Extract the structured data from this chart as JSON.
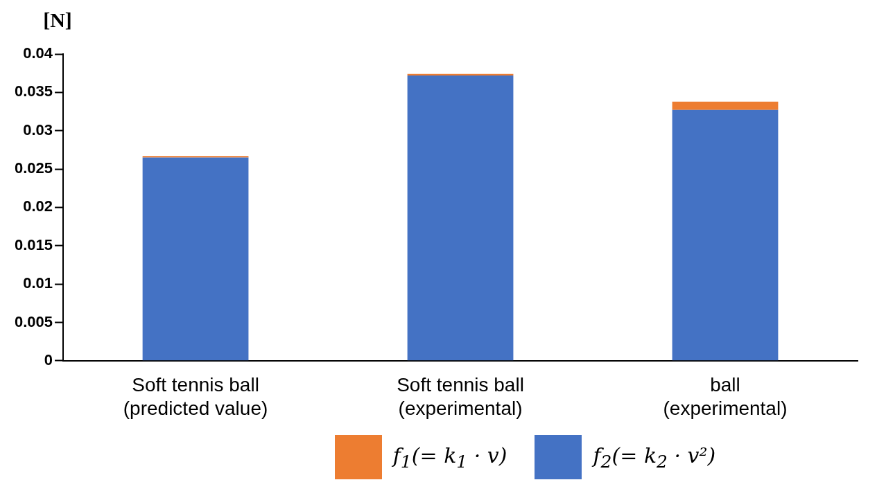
{
  "chart_data": {
    "type": "bar",
    "stacked": true,
    "ylabel": "[N]",
    "categories": [
      "Soft tennis ball\n(predicted value)",
      "Soft tennis ball\n(experimental)",
      "ball\n(experimental)"
    ],
    "series": [
      {
        "name": "f$_{2}$(= k$_{2}$ · v²)",
        "color": "#4472c4",
        "values": [
          0.0265,
          0.0372,
          0.0327
        ]
      },
      {
        "name": "f$_{1}$(= k$_{1}$ · v)",
        "color": "#ed7d31",
        "values": [
          0.0002,
          0.0002,
          0.0011
        ]
      }
    ],
    "ylim": [
      0,
      0.04
    ],
    "yticks": [
      0,
      0.005,
      0.01,
      0.015,
      0.02,
      0.025,
      0.03,
      0.035,
      0.04
    ],
    "grid": false,
    "legend": "bottom"
  }
}
